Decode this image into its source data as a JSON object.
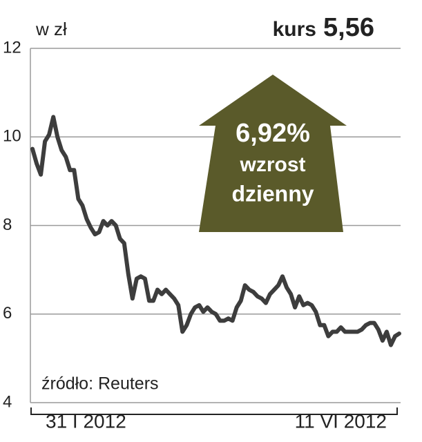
{
  "chart_data": {
    "type": "line",
    "title": "kurs",
    "last_value_label": "5,56",
    "y_axis_label": "w zł",
    "source": "źródło: Reuters",
    "annotations": [
      "6,92%",
      "wzrost",
      "dzienny"
    ],
    "categories": [
      "31 I 2012",
      null,
      null,
      null,
      null,
      null,
      null,
      null,
      null,
      null,
      null,
      null,
      null,
      null,
      null,
      null,
      null,
      null,
      null,
      null,
      null,
      null,
      null,
      null,
      null,
      null,
      null,
      null,
      null,
      null,
      null,
      null,
      null,
      null,
      null,
      null,
      null,
      null,
      null,
      null,
      null,
      null,
      null,
      null,
      null,
      null,
      null,
      null,
      null,
      null,
      null,
      null,
      null,
      null,
      null,
      null,
      null,
      null,
      null,
      null,
      null,
      null,
      null,
      null,
      null,
      null,
      null,
      null,
      null,
      null,
      null,
      null,
      null,
      null,
      null,
      null,
      null,
      null,
      null,
      null,
      null,
      null,
      null,
      null,
      null,
      null,
      null,
      null,
      "11 VI 2012"
    ],
    "series": [
      {
        "name": "kurs",
        "color": "#3d3d3d",
        "values": [
          9.73,
          9.4,
          9.15,
          9.9,
          10.05,
          10.45,
          10,
          9.7,
          9.55,
          9.25,
          9.25,
          8.6,
          8.45,
          8.15,
          7.95,
          7.8,
          7.85,
          8.1,
          8,
          8.1,
          8,
          7.7,
          7.6,
          6.9,
          6.35,
          6.8,
          6.85,
          6.8,
          6.3,
          6.3,
          6.55,
          6.45,
          6.55,
          6.45,
          6.35,
          6.2,
          5.6,
          5.75,
          6,
          6.15,
          6.2,
          6.05,
          6.15,
          6.05,
          6,
          5.85,
          5.85,
          5.9,
          5.85,
          6.15,
          6.3,
          6.65,
          6.55,
          6.5,
          6.4,
          6.35,
          6.25,
          6.45,
          6.55,
          6.65,
          6.85,
          6.6,
          6.45,
          6.15,
          6.4,
          6.2,
          6.25,
          6.2,
          6.05,
          5.75,
          5.75,
          5.5,
          5.6,
          5.6,
          5.7,
          5.6,
          5.6,
          5.6,
          5.6,
          5.65,
          5.75,
          5.8,
          5.8,
          5.65,
          5.4,
          5.6,
          5.3,
          5.5,
          5.56
        ]
      }
    ],
    "ylim": [
      4,
      12
    ],
    "yticks": [
      4,
      6,
      8,
      10,
      12
    ],
    "grid": true,
    "annotation_color": "#5a5a2a"
  }
}
